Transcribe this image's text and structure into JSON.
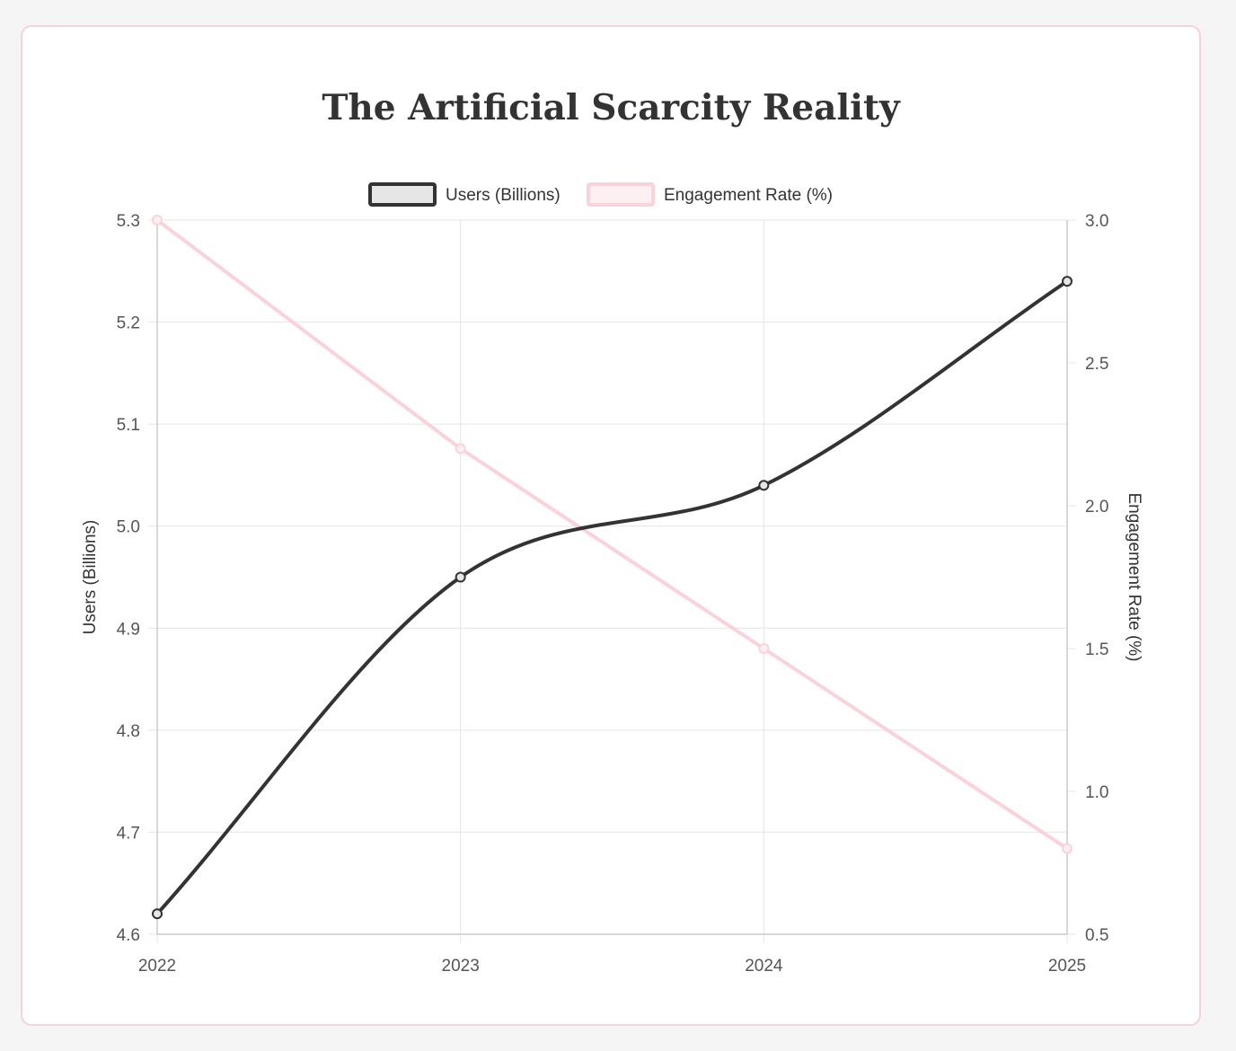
{
  "chart_data": {
    "type": "line",
    "title": "The Artificial Scarcity Reality",
    "categories": [
      "2022",
      "2023",
      "2024",
      "2025"
    ],
    "series": [
      {
        "name": "Users (Billions)",
        "axis": "left",
        "values": [
          4.62,
          4.95,
          5.04,
          5.24
        ],
        "color": "#333333",
        "fill": "#e6e6e6"
      },
      {
        "name": "Engagement Rate (%)",
        "axis": "right",
        "values": [
          3.0,
          2.2,
          1.5,
          0.8
        ],
        "color": "#f9d3d9",
        "fill": "#fdf0f2"
      }
    ],
    "y_left": {
      "label": "Users (Billions)",
      "min": 4.6,
      "max": 5.3,
      "ticks": [
        "4.6",
        "4.7",
        "4.8",
        "4.9",
        "5.0",
        "5.1",
        "5.2",
        "5.3"
      ]
    },
    "y_right": {
      "label": "Engagement Rate (%)",
      "min": 0.5,
      "max": 3.0,
      "ticks": [
        "0.5",
        "1.0",
        "1.5",
        "2.0",
        "2.5",
        "3.0"
      ]
    },
    "legend_position": "top",
    "grid": true
  },
  "colors": {
    "card_border": "#f6d3d8",
    "grid": "#e5e5e5",
    "axis_line": "#cccccc"
  }
}
